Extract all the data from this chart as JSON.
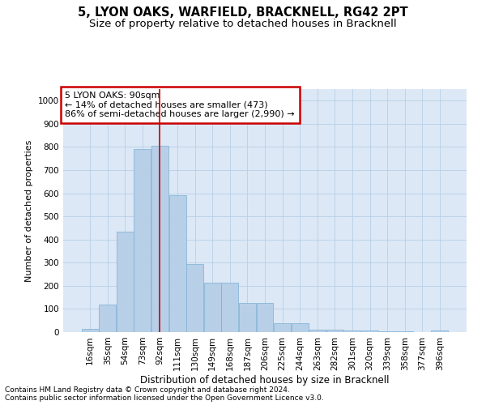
{
  "title": "5, LYON OAKS, WARFIELD, BRACKNELL, RG42 2PT",
  "subtitle": "Size of property relative to detached houses in Bracknell",
  "xlabel": "Distribution of detached houses by size in Bracknell",
  "ylabel": "Number of detached properties",
  "categories": [
    "16sqm",
    "35sqm",
    "54sqm",
    "73sqm",
    "92sqm",
    "111sqm",
    "130sqm",
    "149sqm",
    "168sqm",
    "187sqm",
    "206sqm",
    "225sqm",
    "244sqm",
    "263sqm",
    "282sqm",
    "301sqm",
    "320sqm",
    "339sqm",
    "358sqm",
    "377sqm",
    "396sqm"
  ],
  "values": [
    15,
    120,
    435,
    790,
    805,
    590,
    293,
    212,
    212,
    125,
    125,
    40,
    40,
    12,
    12,
    7,
    7,
    3,
    3,
    0,
    7
  ],
  "bar_color": "#b8cfe8",
  "bar_edge_color": "#7aafd4",
  "property_line_x": 4,
  "annotation_text": "5 LYON OAKS: 90sqm\n← 14% of detached houses are smaller (473)\n86% of semi-detached houses are larger (2,990) →",
  "annotation_box_color": "#ffffff",
  "annotation_box_edge_color": "#cc0000",
  "vline_color": "#cc0000",
  "ylim": [
    0,
    1050
  ],
  "yticks": [
    0,
    100,
    200,
    300,
    400,
    500,
    600,
    700,
    800,
    900,
    1000
  ],
  "footer_line1": "Contains HM Land Registry data © Crown copyright and database right 2024.",
  "footer_line2": "Contains public sector information licensed under the Open Government Licence v3.0.",
  "fig_background_color": "#ffffff",
  "plot_background_color": "#dce8f5",
  "title_fontsize": 10.5,
  "subtitle_fontsize": 9.5,
  "xlabel_fontsize": 8.5,
  "ylabel_fontsize": 8,
  "tick_fontsize": 7.5,
  "annotation_fontsize": 8,
  "footer_fontsize": 6.5
}
